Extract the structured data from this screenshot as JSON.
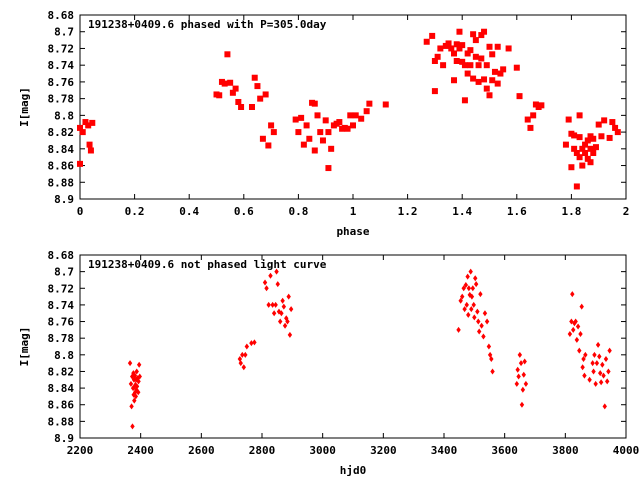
{
  "chart_data": [
    {
      "type": "scatter",
      "title": "191238+0409.6 phased with P=305.0day",
      "xlabel": "phase",
      "ylabel": "I[mag]",
      "xlim": [
        0,
        2
      ],
      "ylim": [
        8.9,
        8.68
      ],
      "y_inverted": true,
      "grid": false,
      "color": "#ff0000",
      "marker": "filled-square",
      "xticks": [
        "0",
        "0.2",
        "0.4",
        "0.6",
        "0.8",
        "1",
        "1.2",
        "1.4",
        "1.6",
        "1.8",
        "2"
      ],
      "yticks": [
        "8.68",
        "8.7",
        "8.72",
        "8.74",
        "8.76",
        "8.78",
        "8.8",
        "8.82",
        "8.84",
        "8.86",
        "8.88",
        "8.9"
      ],
      "points": [
        [
          0.0,
          8.815
        ],
        [
          0.01,
          8.82
        ],
        [
          0.0,
          8.858
        ],
        [
          0.02,
          8.808
        ],
        [
          0.03,
          8.812
        ],
        [
          0.035,
          8.835
        ],
        [
          0.04,
          8.842
        ],
        [
          0.045,
          8.809
        ],
        [
          0.5,
          8.775
        ],
        [
          0.51,
          8.776
        ],
        [
          0.52,
          8.76
        ],
        [
          0.53,
          8.762
        ],
        [
          0.54,
          8.727
        ],
        [
          0.55,
          8.761
        ],
        [
          0.56,
          8.773
        ],
        [
          0.57,
          8.768
        ],
        [
          0.58,
          8.784
        ],
        [
          0.59,
          8.79
        ],
        [
          0.63,
          8.79
        ],
        [
          0.64,
          8.755
        ],
        [
          0.65,
          8.765
        ],
        [
          0.66,
          8.78
        ],
        [
          0.67,
          8.828
        ],
        [
          0.68,
          8.775
        ],
        [
          0.69,
          8.836
        ],
        [
          0.7,
          8.812
        ],
        [
          0.71,
          8.82
        ],
        [
          0.79,
          8.805
        ],
        [
          0.8,
          8.82
        ],
        [
          0.81,
          8.803
        ],
        [
          0.82,
          8.835
        ],
        [
          0.83,
          8.812
        ],
        [
          0.84,
          8.828
        ],
        [
          0.85,
          8.785
        ],
        [
          0.86,
          8.786
        ],
        [
          0.86,
          8.842
        ],
        [
          0.87,
          8.8
        ],
        [
          0.88,
          8.82
        ],
        [
          0.89,
          8.83
        ],
        [
          0.9,
          8.806
        ],
        [
          0.91,
          8.863
        ],
        [
          0.91,
          8.82
        ],
        [
          0.92,
          8.84
        ],
        [
          0.93,
          8.812
        ],
        [
          0.94,
          8.81
        ],
        [
          0.95,
          8.808
        ],
        [
          0.96,
          8.816
        ],
        [
          0.97,
          8.815
        ],
        [
          0.98,
          8.816
        ],
        [
          0.99,
          8.8
        ],
        [
          1.0,
          8.812
        ],
        [
          1.01,
          8.8
        ],
        [
          1.03,
          8.804
        ],
        [
          1.05,
          8.795
        ],
        [
          1.06,
          8.786
        ],
        [
          1.12,
          8.787
        ],
        [
          1.27,
          8.712
        ],
        [
          1.29,
          8.705
        ],
        [
          1.3,
          8.735
        ],
        [
          1.3,
          8.771
        ],
        [
          1.31,
          8.73
        ],
        [
          1.32,
          8.72
        ],
        [
          1.33,
          8.74
        ],
        [
          1.34,
          8.717
        ],
        [
          1.35,
          8.714
        ],
        [
          1.36,
          8.72
        ],
        [
          1.37,
          8.726
        ],
        [
          1.37,
          8.758
        ],
        [
          1.38,
          8.715
        ],
        [
          1.38,
          8.735
        ],
        [
          1.39,
          8.7
        ],
        [
          1.39,
          8.72
        ],
        [
          1.4,
          8.716
        ],
        [
          1.4,
          8.736
        ],
        [
          1.41,
          8.74
        ],
        [
          1.41,
          8.782
        ],
        [
          1.42,
          8.726
        ],
        [
          1.42,
          8.75
        ],
        [
          1.43,
          8.722
        ],
        [
          1.43,
          8.74
        ],
        [
          1.44,
          8.703
        ],
        [
          1.44,
          8.756
        ],
        [
          1.45,
          8.71
        ],
        [
          1.45,
          8.73
        ],
        [
          1.46,
          8.74
        ],
        [
          1.46,
          8.76
        ],
        [
          1.47,
          8.704
        ],
        [
          1.47,
          8.732
        ],
        [
          1.48,
          8.7
        ],
        [
          1.48,
          8.757
        ],
        [
          1.49,
          8.74
        ],
        [
          1.49,
          8.768
        ],
        [
          1.5,
          8.718
        ],
        [
          1.5,
          8.776
        ],
        [
          1.51,
          8.727
        ],
        [
          1.51,
          8.758
        ],
        [
          1.52,
          8.748
        ],
        [
          1.53,
          8.718
        ],
        [
          1.53,
          8.762
        ],
        [
          1.54,
          8.75
        ],
        [
          1.55,
          8.745
        ],
        [
          1.57,
          8.72
        ],
        [
          1.6,
          8.743
        ],
        [
          1.61,
          8.777
        ],
        [
          1.64,
          8.805
        ],
        [
          1.65,
          8.815
        ],
        [
          1.66,
          8.8
        ],
        [
          1.67,
          8.787
        ],
        [
          1.68,
          8.79
        ],
        [
          1.69,
          8.788
        ],
        [
          1.78,
          8.835
        ],
        [
          1.79,
          8.805
        ],
        [
          1.8,
          8.822
        ],
        [
          1.8,
          8.862
        ],
        [
          1.81,
          8.84
        ],
        [
          1.81,
          8.824
        ],
        [
          1.82,
          8.845
        ],
        [
          1.82,
          8.885
        ],
        [
          1.83,
          8.8
        ],
        [
          1.83,
          8.826
        ],
        [
          1.83,
          8.85
        ],
        [
          1.84,
          8.84
        ],
        [
          1.84,
          8.86
        ],
        [
          1.85,
          8.835
        ],
        [
          1.85,
          8.845
        ],
        [
          1.86,
          8.83
        ],
        [
          1.86,
          8.852
        ],
        [
          1.87,
          8.825
        ],
        [
          1.87,
          8.84
        ],
        [
          1.87,
          8.856
        ],
        [
          1.88,
          8.828
        ],
        [
          1.88,
          8.845
        ],
        [
          1.89,
          8.838
        ],
        [
          1.9,
          8.811
        ],
        [
          1.91,
          8.825
        ],
        [
          1.92,
          8.806
        ],
        [
          1.94,
          8.827
        ],
        [
          1.95,
          8.808
        ],
        [
          1.96,
          8.815
        ],
        [
          1.97,
          8.82
        ]
      ]
    },
    {
      "type": "scatter",
      "title": "191238+0409.6 not phased light curve",
      "xlabel": "hjd0",
      "ylabel": "I[mag]",
      "xlim": [
        2200,
        4000
      ],
      "ylim": [
        8.9,
        8.68
      ],
      "y_inverted": true,
      "grid": false,
      "color": "#ff0000",
      "marker": "filled-diamond",
      "xticks": [
        "2200",
        "2400",
        "2600",
        "2800",
        "3000",
        "3200",
        "3400",
        "3600",
        "3800",
        "4000"
      ],
      "yticks": [
        "8.68",
        "8.7",
        "8.72",
        "8.74",
        "8.76",
        "8.78",
        "8.8",
        "8.82",
        "8.84",
        "8.86",
        "8.88",
        "8.9"
      ],
      "points": [
        [
          2365,
          8.81
        ],
        [
          2368,
          8.835
        ],
        [
          2370,
          8.862
        ],
        [
          2372,
          8.826
        ],
        [
          2373,
          8.886
        ],
        [
          2375,
          8.84
        ],
        [
          2376,
          8.822
        ],
        [
          2377,
          8.848
        ],
        [
          2378,
          8.83
        ],
        [
          2379,
          8.855
        ],
        [
          2380,
          8.838
        ],
        [
          2381,
          8.825
        ],
        [
          2382,
          8.845
        ],
        [
          2383,
          8.836
        ],
        [
          2384,
          8.85
        ],
        [
          2385,
          8.83
        ],
        [
          2386,
          8.842
        ],
        [
          2387,
          8.82
        ],
        [
          2388,
          8.838
        ],
        [
          2390,
          8.828
        ],
        [
          2392,
          8.845
        ],
        [
          2393,
          8.832
        ],
        [
          2395,
          8.812
        ],
        [
          2397,
          8.826
        ],
        [
          2727,
          8.805
        ],
        [
          2730,
          8.81
        ],
        [
          2735,
          8.8
        ],
        [
          2740,
          8.815
        ],
        [
          2745,
          8.8
        ],
        [
          2750,
          8.79
        ],
        [
          2765,
          8.786
        ],
        [
          2775,
          8.785
        ],
        [
          2810,
          8.713
        ],
        [
          2815,
          8.72
        ],
        [
          2822,
          8.74
        ],
        [
          2828,
          8.705
        ],
        [
          2835,
          8.74
        ],
        [
          2840,
          8.75
        ],
        [
          2845,
          8.74
        ],
        [
          2848,
          8.7
        ],
        [
          2852,
          8.715
        ],
        [
          2856,
          8.748
        ],
        [
          2860,
          8.76
        ],
        [
          2864,
          8.75
        ],
        [
          2868,
          8.735
        ],
        [
          2872,
          8.742
        ],
        [
          2876,
          8.765
        ],
        [
          2880,
          8.756
        ],
        [
          2884,
          8.76
        ],
        [
          2888,
          8.73
        ],
        [
          2892,
          8.776
        ],
        [
          2896,
          8.745
        ],
        [
          3448,
          8.77
        ],
        [
          3455,
          8.735
        ],
        [
          3460,
          8.73
        ],
        [
          3465,
          8.72
        ],
        [
          3468,
          8.745
        ],
        [
          3472,
          8.716
        ],
        [
          3475,
          8.74
        ],
        [
          3478,
          8.706
        ],
        [
          3480,
          8.752
        ],
        [
          3482,
          8.72
        ],
        [
          3485,
          8.728
        ],
        [
          3488,
          8.7
        ],
        [
          3490,
          8.745
        ],
        [
          3492,
          8.73
        ],
        [
          3495,
          8.72
        ],
        [
          3498,
          8.74
        ],
        [
          3500,
          8.755
        ],
        [
          3503,
          8.708
        ],
        [
          3506,
          8.715
        ],
        [
          3510,
          8.748
        ],
        [
          3513,
          8.76
        ],
        [
          3516,
          8.772
        ],
        [
          3520,
          8.727
        ],
        [
          3524,
          8.765
        ],
        [
          3530,
          8.778
        ],
        [
          3535,
          8.75
        ],
        [
          3542,
          8.76
        ],
        [
          3548,
          8.79
        ],
        [
          3552,
          8.8
        ],
        [
          3556,
          8.805
        ],
        [
          3560,
          8.82
        ],
        [
          3640,
          8.835
        ],
        [
          3643,
          8.818
        ],
        [
          3646,
          8.826
        ],
        [
          3650,
          8.8
        ],
        [
          3654,
          8.81
        ],
        [
          3657,
          8.86
        ],
        [
          3660,
          8.842
        ],
        [
          3663,
          8.824
        ],
        [
          3666,
          8.808
        ],
        [
          3670,
          8.835
        ],
        [
          3815,
          8.775
        ],
        [
          3820,
          8.76
        ],
        [
          3823,
          8.727
        ],
        [
          3826,
          8.77
        ],
        [
          3830,
          8.762
        ],
        [
          3834,
          8.76
        ],
        [
          3838,
          8.782
        ],
        [
          3842,
          8.766
        ],
        [
          3846,
          8.795
        ],
        [
          3850,
          8.775
        ],
        [
          3854,
          8.742
        ],
        [
          3857,
          8.815
        ],
        [
          3860,
          8.805
        ],
        [
          3863,
          8.825
        ],
        [
          3866,
          8.8
        ],
        [
          3880,
          8.83
        ],
        [
          3890,
          8.81
        ],
        [
          3893,
          8.82
        ],
        [
          3896,
          8.8
        ],
        [
          3900,
          8.835
        ],
        [
          3904,
          8.81
        ],
        [
          3908,
          8.788
        ],
        [
          3912,
          8.802
        ],
        [
          3915,
          8.822
        ],
        [
          3918,
          8.833
        ],
        [
          3922,
          8.812
        ],
        [
          3926,
          8.825
        ],
        [
          3930,
          8.862
        ],
        [
          3934,
          8.805
        ],
        [
          3938,
          8.832
        ],
        [
          3942,
          8.82
        ],
        [
          3946,
          8.795
        ]
      ]
    }
  ]
}
